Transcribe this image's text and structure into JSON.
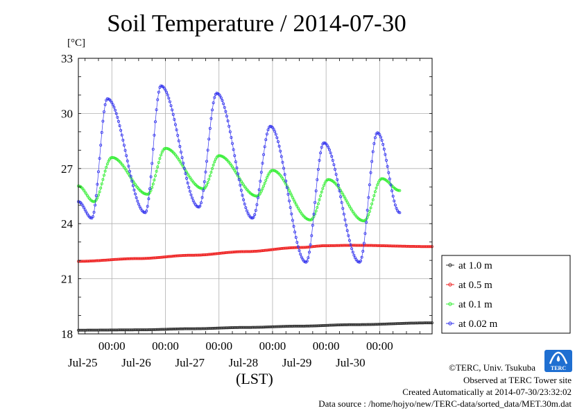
{
  "title": "Soil Temperature / 2014-07-30",
  "unit_label": "[°C]",
  "x_axis_label": "(LST)",
  "credits": {
    "copyright": "©TERC, Univ. Tsukuba",
    "observed": "Observed at TERC Tower site",
    "created": "Created Automatically at 2014-07-30/23:32:02",
    "source": "Data source : /home/hojyo/new/TERC-data/sorted_data/MET.30m.dat"
  },
  "logo": {
    "text": "TERC",
    "color": "#1f6fd1"
  },
  "chart_data": {
    "type": "line",
    "title": "Soil Temperature / 2014-07-30",
    "ylabel": "[°C]",
    "xlabel": "(LST)",
    "ylim": [
      18,
      33
    ],
    "yticks": [
      18,
      21,
      24,
      27,
      30,
      33
    ],
    "xlim": [
      "2014-07-24T09:00",
      "2014-07-30T23:30"
    ],
    "xticks": [
      {
        "time": "2014-07-25T00:00",
        "label": "00:00",
        "date": "Jul-25"
      },
      {
        "time": "2014-07-26T00:00",
        "label": "00:00",
        "date": "Jul-26"
      },
      {
        "time": "2014-07-27T00:00",
        "label": "00:00",
        "date": "Jul-27"
      },
      {
        "time": "2014-07-28T00:00",
        "label": "00:00",
        "date": "Jul-28"
      },
      {
        "time": "2014-07-29T00:00",
        "label": "00:00",
        "date": "Jul-29"
      },
      {
        "time": "2014-07-30T00:00",
        "label": "00:00",
        "date": "Jul-30"
      }
    ],
    "grid": true,
    "legend_position": "right-bottom",
    "series": [
      {
        "name": "at 1.0 m",
        "color": "#333333",
        "marker": "circle",
        "points": [
          [
            "2014-07-24T09:00",
            18.2
          ],
          [
            "2014-07-25T12:00",
            18.22
          ],
          [
            "2014-07-26T12:00",
            18.28
          ],
          [
            "2014-07-27T12:00",
            18.35
          ],
          [
            "2014-07-28T12:00",
            18.42
          ],
          [
            "2014-07-29T12:00",
            18.5
          ],
          [
            "2014-07-30T23:30",
            18.6
          ]
        ]
      },
      {
        "name": "at 0.5 m",
        "color": "#ee2222",
        "marker": "circle",
        "points": [
          [
            "2014-07-24T09:00",
            21.95
          ],
          [
            "2014-07-25T12:00",
            22.1
          ],
          [
            "2014-07-26T12:00",
            22.28
          ],
          [
            "2014-07-27T12:00",
            22.48
          ],
          [
            "2014-07-28T12:00",
            22.7
          ],
          [
            "2014-07-29T00:00",
            22.8
          ],
          [
            "2014-07-29T12:00",
            22.82
          ],
          [
            "2014-07-30T23:30",
            22.75
          ]
        ]
      },
      {
        "name": "at 0.1 m",
        "color": "#33ee33",
        "marker": "circle",
        "points": [
          [
            "2014-07-24T09:00",
            26.05
          ],
          [
            "2014-07-24T16:00",
            25.2
          ],
          [
            "2014-07-25T00:00",
            27.6
          ],
          [
            "2014-07-25T16:00",
            25.6
          ],
          [
            "2014-07-26T00:00",
            28.1
          ],
          [
            "2014-07-26T17:00",
            25.9
          ],
          [
            "2014-07-27T00:00",
            27.7
          ],
          [
            "2014-07-27T17:00",
            25.5
          ],
          [
            "2014-07-28T00:00",
            26.9
          ],
          [
            "2014-07-28T17:00",
            24.2
          ],
          [
            "2014-07-29T01:00",
            26.4
          ],
          [
            "2014-07-29T17:00",
            24.15
          ],
          [
            "2014-07-30T01:00",
            26.45
          ],
          [
            "2014-07-30T09:00",
            25.8
          ]
        ]
      },
      {
        "name": "at 0.02 m",
        "color": "#3333ee",
        "marker": "circle",
        "points": [
          [
            "2014-07-24T09:00",
            25.2
          ],
          [
            "2014-07-24T15:00",
            24.3
          ],
          [
            "2014-07-24T22:00",
            30.8
          ],
          [
            "2014-07-25T15:00",
            24.6
          ],
          [
            "2014-07-25T22:00",
            31.5
          ],
          [
            "2014-07-26T15:00",
            24.9
          ],
          [
            "2014-07-26T23:00",
            31.1
          ],
          [
            "2014-07-27T15:00",
            24.3
          ],
          [
            "2014-07-27T23:00",
            29.3
          ],
          [
            "2014-07-28T15:00",
            21.9
          ],
          [
            "2014-07-28T23:00",
            28.4
          ],
          [
            "2014-07-29T15:00",
            21.9
          ],
          [
            "2014-07-29T23:00",
            28.95
          ],
          [
            "2014-07-30T09:00",
            24.6
          ]
        ]
      }
    ]
  }
}
